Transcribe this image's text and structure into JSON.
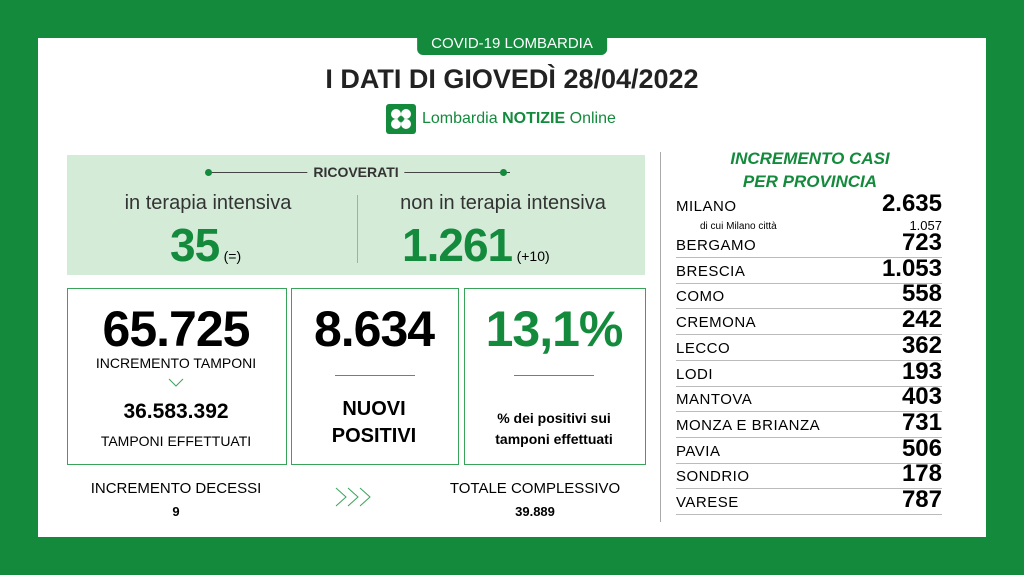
{
  "header": {
    "tag": "COVID-19 LOMBARDIA",
    "title": "I DATI DI GIOVEDÌ 28/04/2022",
    "logo": {
      "brand": "Lombardia",
      "name": "NOTIZIE",
      "suffix": "Online"
    }
  },
  "ricoverati": {
    "label": "RICOVERATI",
    "intensive": {
      "label": "in terapia intensiva",
      "value": "35",
      "change": "(=)"
    },
    "non_intensive": {
      "label": "non in terapia intensiva",
      "value": "1.261",
      "change": "(+10)"
    }
  },
  "tamponi": {
    "value": "65.725",
    "label": "INCREMENTO TAMPONI",
    "total": "36.583.392",
    "total_label": "TAMPONI EFFETTUATI"
  },
  "positivi": {
    "value": "8.634",
    "label_line1": "NUOVI",
    "label_line2": "POSITIVI"
  },
  "percentuale": {
    "value": "13,1%",
    "label_line1": "% dei positivi sui",
    "label_line2": "tamponi effettuati"
  },
  "decessi": {
    "label": "INCREMENTO DECESSI",
    "value": "9",
    "total_label": "TOTALE COMPLESSIVO",
    "total": "39.889"
  },
  "province": {
    "title_line1": "INCREMENTO CASI",
    "title_line2": "PER PROVINCIA",
    "milano_city": {
      "label": "di cui Milano città",
      "value": "1.057"
    },
    "rows": [
      [
        "MILANO",
        "2.635"
      ],
      [
        "BERGAMO",
        "723"
      ],
      [
        "BRESCIA",
        "1.053"
      ],
      [
        "COMO",
        "558"
      ],
      [
        "CREMONA",
        "242"
      ],
      [
        "LECCO",
        "362"
      ],
      [
        "LODI",
        "193"
      ],
      [
        "MANTOVA",
        "403"
      ],
      [
        "MONZA E BRIANZA",
        "731"
      ],
      [
        "PAVIA",
        "506"
      ],
      [
        "SONDRIO",
        "178"
      ],
      [
        "VARESE",
        "787"
      ]
    ]
  }
}
